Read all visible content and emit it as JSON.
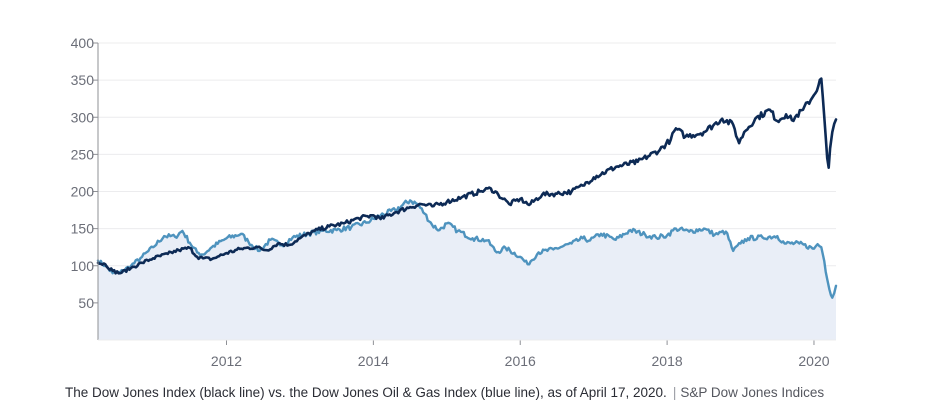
{
  "chart_data": {
    "type": "line",
    "ylim": [
      0,
      400
    ],
    "yticks": [
      "50",
      "100",
      "150",
      "200",
      "250",
      "300",
      "350",
      "400"
    ],
    "ytick_values": [
      50,
      100,
      150,
      200,
      250,
      300,
      350,
      400
    ],
    "xlim": [
      2010.25,
      2020.3
    ],
    "xticks": [
      "2012",
      "2014",
      "2016",
      "2018",
      "2020"
    ],
    "xtick_values": [
      2012,
      2014,
      2016,
      2018,
      2020
    ],
    "grid": true,
    "colors": {
      "dow_jones": "#0d2a55",
      "oil_gas": "#4e93be",
      "area_fill": "#e9eef7",
      "grid": "#ececee",
      "axis": "#8f9196"
    },
    "series": [
      {
        "key": "dow_jones",
        "x": [
          2010.25,
          2010.35,
          2010.45,
          2010.55,
          2010.7,
          2010.85,
          2011.0,
          2011.2,
          2011.35,
          2011.5,
          2011.6,
          2011.68,
          2011.8,
          2011.9,
          2012.0,
          2012.2,
          2012.4,
          2012.55,
          2012.7,
          2012.85,
          2013.0,
          2013.2,
          2013.4,
          2013.6,
          2013.8,
          2014.0,
          2014.1,
          2014.3,
          2014.5,
          2014.65,
          2014.8,
          2015.0,
          2015.2,
          2015.45,
          2015.6,
          2015.7,
          2015.85,
          2016.0,
          2016.12,
          2016.3,
          2016.5,
          2016.7,
          2016.85,
          2017.0,
          2017.3,
          2017.6,
          2017.9,
          2018.05,
          2018.12,
          2018.25,
          2018.5,
          2018.75,
          2018.9,
          2018.98,
          2019.05,
          2019.2,
          2019.4,
          2019.5,
          2019.62,
          2019.7,
          2019.85,
          2020.0,
          2020.1,
          2020.14,
          2020.18,
          2020.2,
          2020.22,
          2020.25,
          2020.3
        ],
        "values": [
          104,
          102,
          93,
          90,
          97,
          104,
          110,
          116,
          121,
          124,
          112,
          110,
          109,
          113,
          117,
          123,
          125,
          121,
          130,
          128,
          137,
          147,
          153,
          157,
          164,
          168,
          163,
          172,
          179,
          183,
          180,
          186,
          192,
          200,
          204,
          196,
          183,
          190,
          182,
          196,
          197,
          200,
          208,
          219,
          233,
          240,
          256,
          270,
          285,
          274,
          280,
          298,
          290,
          265,
          280,
          298,
          310,
          295,
          304,
          296,
          310,
          330,
          352,
          300,
          245,
          232,
          258,
          280,
          297
        ]
      },
      {
        "key": "oil_gas",
        "x": [
          2010.25,
          2010.35,
          2010.45,
          2010.55,
          2010.7,
          2010.85,
          2011.0,
          2011.15,
          2011.3,
          2011.4,
          2011.5,
          2011.6,
          2011.68,
          2011.8,
          2012.0,
          2012.2,
          2012.3,
          2012.45,
          2012.6,
          2012.75,
          2012.9,
          2013.1,
          2013.3,
          2013.5,
          2013.7,
          2013.9,
          2014.1,
          2014.3,
          2014.5,
          2014.6,
          2014.7,
          2014.8,
          2014.9,
          2015.0,
          2015.15,
          2015.35,
          2015.55,
          2015.68,
          2015.8,
          2016.0,
          2016.1,
          2016.25,
          2016.45,
          2016.7,
          2016.85,
          2016.95,
          2017.1,
          2017.3,
          2017.5,
          2017.7,
          2017.85,
          2018.0,
          2018.12,
          2018.3,
          2018.5,
          2018.65,
          2018.8,
          2018.9,
          2019.0,
          2019.1,
          2019.3,
          2019.5,
          2019.6,
          2019.8,
          2020.0,
          2020.05,
          2020.1,
          2020.14,
          2020.18,
          2020.21,
          2020.25,
          2020.3
        ],
        "values": [
          107,
          100,
          90,
          91,
          100,
          112,
          125,
          140,
          139,
          147,
          131,
          118,
          115,
          125,
          137,
          143,
          132,
          120,
          135,
          128,
          138,
          143,
          147,
          148,
          152,
          158,
          168,
          175,
          188,
          183,
          170,
          155,
          148,
          157,
          147,
          137,
          134,
          118,
          124,
          112,
          102,
          118,
          122,
          130,
          137,
          134,
          143,
          135,
          148,
          142,
          138,
          141,
          150,
          146,
          150,
          142,
          146,
          120,
          130,
          137,
          138,
          140,
          130,
          130,
          123,
          129,
          125,
          106,
          82,
          68,
          57,
          73
        ]
      }
    ],
    "caption": "The Dow Jones Index (black line) vs. the Dow Jones Oil & Gas Index (blue line), as of April 17, 2020.",
    "separator": "|",
    "source": "S&P Dow Jones Indices"
  }
}
